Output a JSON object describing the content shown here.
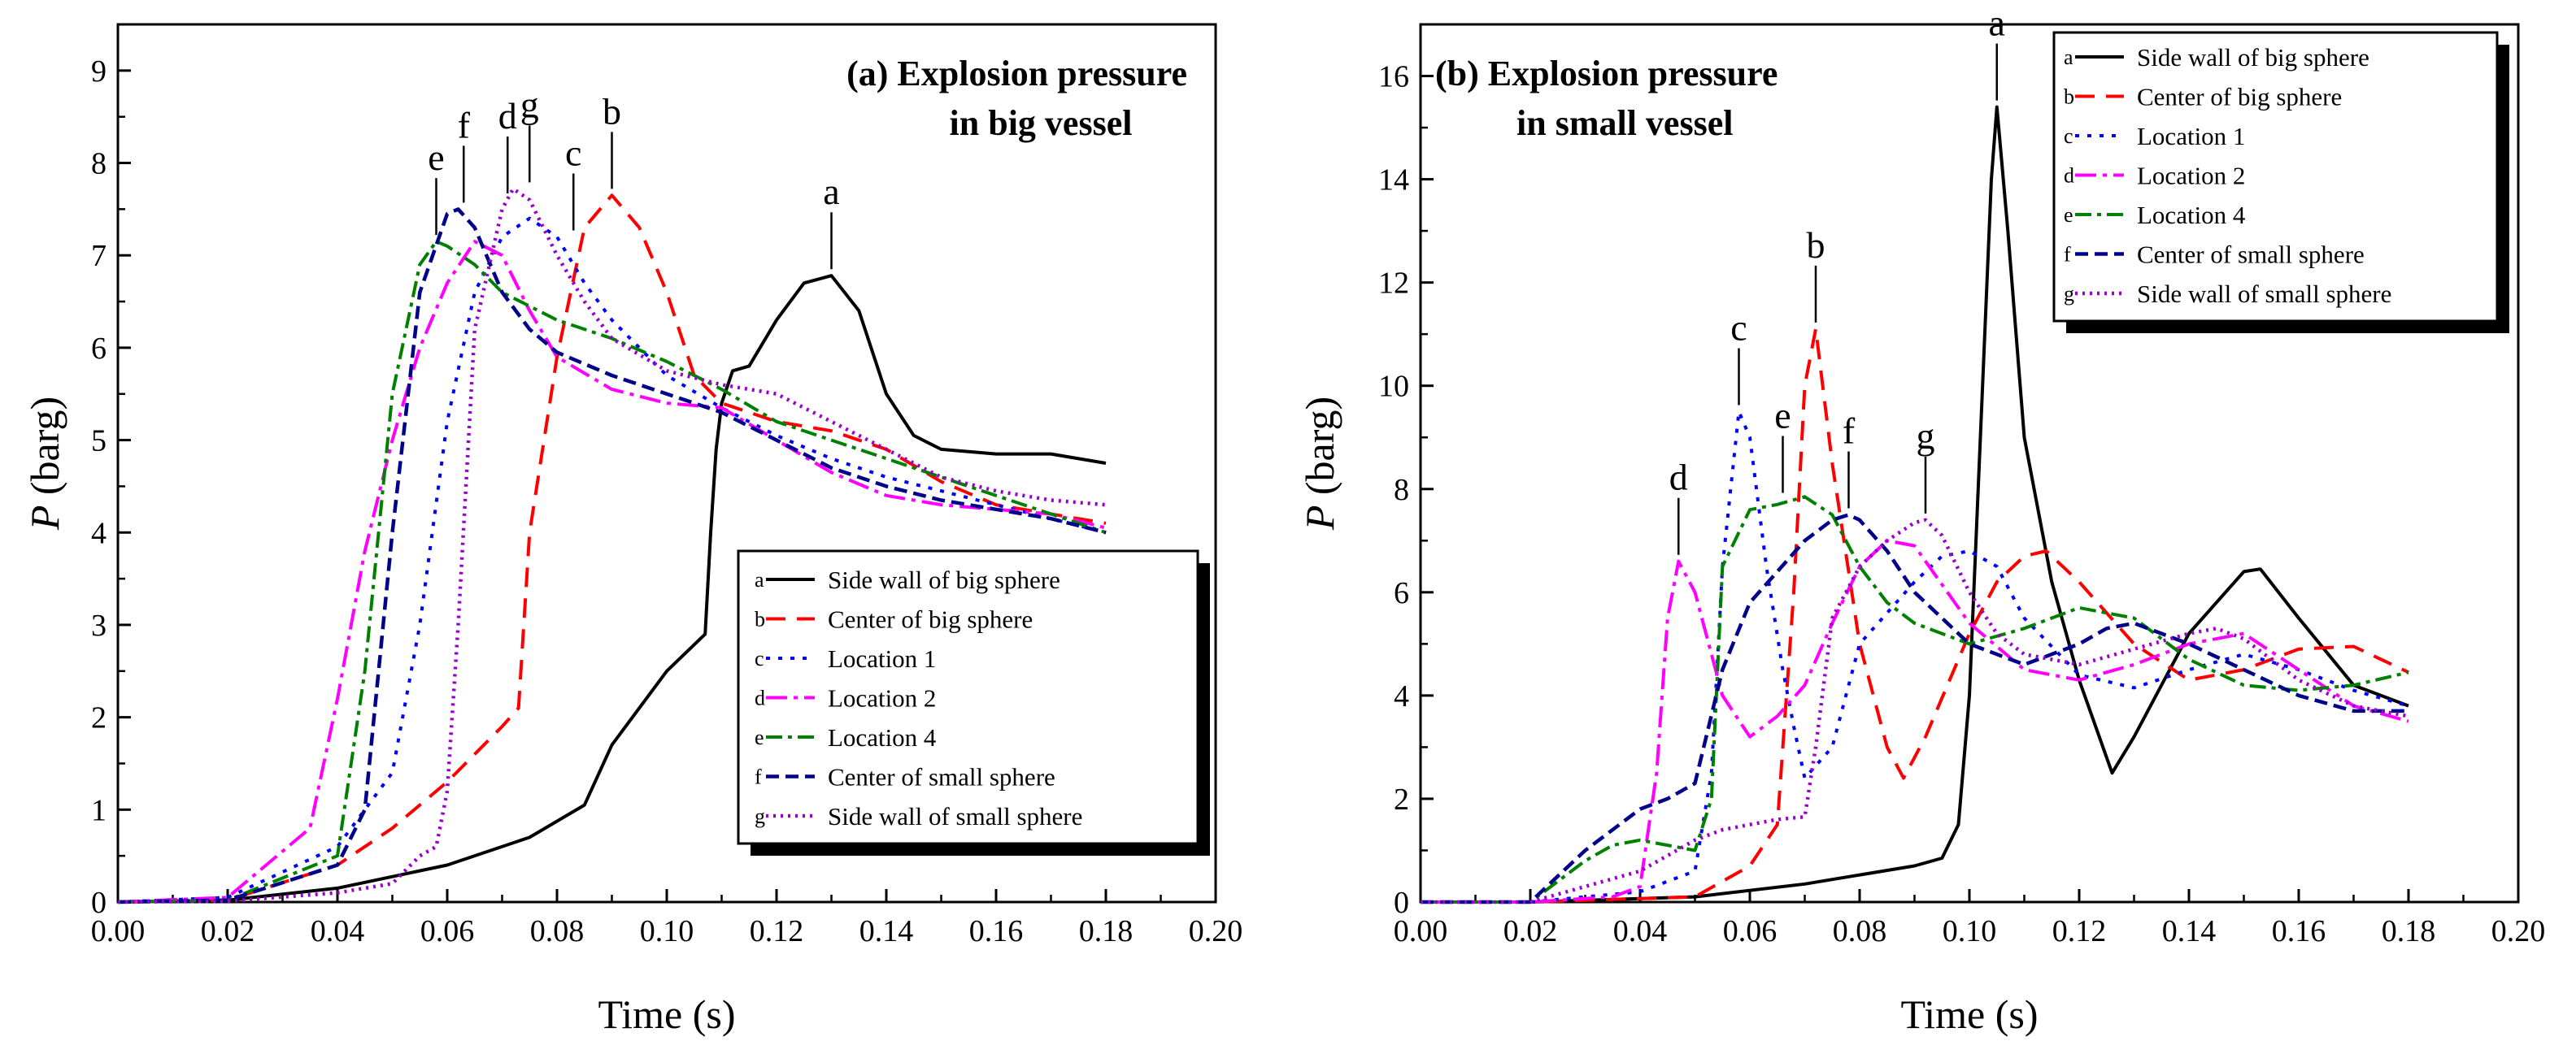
{
  "chart_data": [
    {
      "type": "line",
      "title": [
        "(a) Explosion pressure",
        "in big vessel"
      ],
      "xlabel": "Time (s)",
      "ylabel_italic": "P",
      "ylabel_rest": " (barg)",
      "xlim": [
        0,
        0.2
      ],
      "ylim": [
        0,
        9.5
      ],
      "x_ticks": [
        "0.00",
        "0.02",
        "0.04",
        "0.06",
        "0.08",
        "0.10",
        "0.12",
        "0.14",
        "0.16",
        "0.18",
        "0.20"
      ],
      "y_ticks": [
        "0",
        "1",
        "2",
        "3",
        "4",
        "5",
        "6",
        "7",
        "8",
        "9"
      ],
      "legend_position": "lower-right",
      "series": [
        {
          "key": "a",
          "name": "Side wall of big sphere",
          "color": "#000000",
          "dash": "",
          "width": 4,
          "x": [
            0,
            0.02,
            0.04,
            0.06,
            0.075,
            0.085,
            0.09,
            0.1,
            0.107,
            0.108,
            0.109,
            0.11,
            0.112,
            0.115,
            0.12,
            0.125,
            0.13,
            0.135,
            0.14,
            0.145,
            0.15,
            0.16,
            0.17,
            0.18
          ],
          "values": [
            0,
            0.02,
            0.15,
            0.4,
            0.7,
            1.05,
            1.7,
            2.5,
            2.9,
            4.0,
            4.9,
            5.4,
            5.75,
            5.8,
            6.3,
            6.7,
            6.78,
            6.4,
            5.5,
            5.05,
            4.9,
            4.85,
            4.85,
            4.75
          ]
        },
        {
          "key": "b",
          "name": "Center of big sphere",
          "color": "#ff0000",
          "dash": "24 14",
          "width": 4,
          "x": [
            0,
            0.02,
            0.04,
            0.05,
            0.06,
            0.07,
            0.073,
            0.075,
            0.08,
            0.085,
            0.09,
            0.095,
            0.1,
            0.105,
            0.11,
            0.12,
            0.13,
            0.14,
            0.15,
            0.16,
            0.17,
            0.18
          ],
          "values": [
            0,
            0.02,
            0.4,
            0.8,
            1.3,
            1.9,
            2.1,
            4.0,
            5.9,
            7.3,
            7.65,
            7.3,
            6.6,
            5.7,
            5.4,
            5.2,
            5.1,
            4.9,
            4.55,
            4.3,
            4.2,
            4.1
          ]
        },
        {
          "key": "c",
          "name": "Location 1",
          "color": "#0000ff",
          "dash": "5 10",
          "width": 4,
          "x": [
            0,
            0.02,
            0.04,
            0.05,
            0.055,
            0.06,
            0.065,
            0.07,
            0.075,
            0.08,
            0.085,
            0.09,
            0.1,
            0.11,
            0.12,
            0.13,
            0.14,
            0.15,
            0.16,
            0.17,
            0.18
          ],
          "values": [
            0,
            0.05,
            0.6,
            1.4,
            3.0,
            5.2,
            6.6,
            7.2,
            7.4,
            7.2,
            6.7,
            6.3,
            5.7,
            5.35,
            5.05,
            4.8,
            4.6,
            4.45,
            4.3,
            4.15,
            4.0
          ]
        },
        {
          "key": "d",
          "name": "Location 2",
          "color": "#ff00ff",
          "dash": "26 8 5 8",
          "width": 4,
          "x": [
            0,
            0.02,
            0.035,
            0.04,
            0.045,
            0.05,
            0.055,
            0.06,
            0.065,
            0.07,
            0.075,
            0.08,
            0.09,
            0.1,
            0.11,
            0.12,
            0.13,
            0.14,
            0.15,
            0.16,
            0.17,
            0.18
          ],
          "values": [
            0,
            0.05,
            0.8,
            2.2,
            3.8,
            5.0,
            6.0,
            6.7,
            7.15,
            7.0,
            6.4,
            5.9,
            5.55,
            5.4,
            5.35,
            5.0,
            4.65,
            4.4,
            4.3,
            4.25,
            4.2,
            4.05
          ]
        },
        {
          "key": "e",
          "name": "Location 4",
          "color": "#008000",
          "dash": "20 7 5 7",
          "width": 4,
          "x": [
            0,
            0.02,
            0.04,
            0.045,
            0.05,
            0.055,
            0.058,
            0.06,
            0.065,
            0.07,
            0.08,
            0.09,
            0.1,
            0.11,
            0.12,
            0.13,
            0.14,
            0.15,
            0.16,
            0.17,
            0.18
          ],
          "values": [
            0,
            0.02,
            0.5,
            2.5,
            5.5,
            6.9,
            7.15,
            7.1,
            6.9,
            6.6,
            6.3,
            6.1,
            5.85,
            5.55,
            5.2,
            5.0,
            4.8,
            4.6,
            4.4,
            4.2,
            4.0
          ]
        },
        {
          "key": "f",
          "name": "Center of small sphere",
          "color": "#00008b",
          "dash": "16 8",
          "width": 4.5,
          "x": [
            0,
            0.02,
            0.04,
            0.045,
            0.05,
            0.055,
            0.06,
            0.062,
            0.065,
            0.07,
            0.075,
            0.08,
            0.09,
            0.1,
            0.11,
            0.12,
            0.13,
            0.14,
            0.15,
            0.16,
            0.17,
            0.18
          ],
          "values": [
            0,
            0.02,
            0.4,
            1.0,
            4.0,
            6.6,
            7.45,
            7.5,
            7.3,
            6.6,
            6.2,
            5.95,
            5.7,
            5.5,
            5.3,
            5.0,
            4.7,
            4.5,
            4.35,
            4.25,
            4.15,
            4.0
          ]
        },
        {
          "key": "g",
          "name": "Side wall of small sphere",
          "color": "#9900cc",
          "dash": "3 6",
          "width": 4.5,
          "x": [
            0,
            0.02,
            0.04,
            0.05,
            0.055,
            0.058,
            0.06,
            0.062,
            0.065,
            0.07,
            0.072,
            0.075,
            0.08,
            0.085,
            0.09,
            0.1,
            0.11,
            0.12,
            0.13,
            0.14,
            0.15,
            0.16,
            0.17,
            0.18
          ],
          "values": [
            0,
            0.01,
            0.1,
            0.2,
            0.5,
            0.6,
            1.2,
            3.0,
            6.2,
            7.5,
            7.72,
            7.6,
            7.0,
            6.5,
            6.1,
            5.75,
            5.6,
            5.5,
            5.2,
            4.9,
            4.6,
            4.45,
            4.35,
            4.3
          ]
        }
      ],
      "peak_labels": [
        {
          "text": "a",
          "x": 0.13,
          "y": 6.78
        },
        {
          "text": "b",
          "x": 0.09,
          "y": 7.65
        },
        {
          "text": "c",
          "x": 0.083,
          "y": 7.2
        },
        {
          "text": "d",
          "x": 0.071,
          "y": 7.6
        },
        {
          "text": "e",
          "x": 0.058,
          "y": 7.15
        },
        {
          "text": "f",
          "x": 0.063,
          "y": 7.5
        },
        {
          "text": "g",
          "x": 0.075,
          "y": 7.72
        }
      ]
    },
    {
      "type": "line",
      "title": [
        "(b) Explosion pressure",
        "in small vessel"
      ],
      "xlabel": "Time (s)",
      "ylabel_italic": "P",
      "ylabel_rest": " (barg)",
      "xlim": [
        0,
        0.2
      ],
      "ylim": [
        0,
        17
      ],
      "x_ticks": [
        "0.00",
        "0.02",
        "0.04",
        "0.06",
        "0.08",
        "0.10",
        "0.12",
        "0.14",
        "0.16",
        "0.18",
        "0.20"
      ],
      "y_ticks": [
        "0",
        "2",
        "4",
        "6",
        "8",
        "10",
        "12",
        "14",
        "16"
      ],
      "legend_position": "upper-right",
      "series": [
        {
          "key": "a",
          "name": "Side wall of big sphere",
          "color": "#000000",
          "dash": "",
          "width": 4,
          "x": [
            0,
            0.02,
            0.05,
            0.07,
            0.09,
            0.095,
            0.098,
            0.1,
            0.102,
            0.104,
            0.105,
            0.107,
            0.11,
            0.115,
            0.12,
            0.126,
            0.13,
            0.14,
            0.15,
            0.153,
            0.16,
            0.17,
            0.18
          ],
          "values": [
            0,
            0,
            0.1,
            0.35,
            0.7,
            0.85,
            1.5,
            4.0,
            9.0,
            14.0,
            15.4,
            13.0,
            9.0,
            6.2,
            4.3,
            2.5,
            3.2,
            5.2,
            6.4,
            6.45,
            5.5,
            4.2,
            3.8
          ]
        },
        {
          "key": "b",
          "name": "Center of big sphere",
          "color": "#ff0000",
          "dash": "24 14",
          "width": 4,
          "x": [
            0,
            0.02,
            0.05,
            0.06,
            0.065,
            0.068,
            0.07,
            0.072,
            0.075,
            0.08,
            0.085,
            0.088,
            0.092,
            0.1,
            0.105,
            0.11,
            0.114,
            0.12,
            0.13,
            0.14,
            0.15,
            0.16,
            0.17,
            0.18
          ],
          "values": [
            0,
            0,
            0.1,
            0.7,
            1.5,
            6.0,
            10.0,
            11.1,
            8.5,
            5.0,
            3.0,
            2.4,
            3.2,
            5.2,
            6.2,
            6.7,
            6.8,
            6.2,
            5.0,
            4.3,
            4.5,
            4.9,
            4.95,
            4.45
          ]
        },
        {
          "key": "c",
          "name": "Location 1",
          "color": "#0000ff",
          "dash": "5 10",
          "width": 4,
          "x": [
            0,
            0.02,
            0.04,
            0.05,
            0.053,
            0.055,
            0.058,
            0.06,
            0.063,
            0.066,
            0.068,
            0.07,
            0.075,
            0.08,
            0.09,
            0.095,
            0.1,
            0.105,
            0.11,
            0.12,
            0.13,
            0.14,
            0.15,
            0.16,
            0.17,
            0.18
          ],
          "values": [
            0,
            0,
            0.2,
            0.6,
            2.5,
            6.5,
            9.5,
            9.0,
            6.5,
            4.5,
            3.4,
            2.4,
            3.0,
            5.0,
            6.2,
            6.7,
            6.8,
            6.5,
            5.5,
            4.4,
            4.15,
            4.5,
            4.8,
            4.5,
            4.1,
            3.8
          ]
        },
        {
          "key": "d",
          "name": "Location 2",
          "color": "#ff00ff",
          "dash": "26 8 5 8",
          "width": 4,
          "x": [
            0,
            0.02,
            0.035,
            0.04,
            0.043,
            0.045,
            0.047,
            0.05,
            0.055,
            0.06,
            0.065,
            0.07,
            0.075,
            0.08,
            0.085,
            0.09,
            0.1,
            0.11,
            0.12,
            0.13,
            0.14,
            0.15,
            0.16,
            0.17,
            0.18
          ],
          "values": [
            0,
            0,
            0.1,
            0.3,
            2.5,
            5.5,
            6.6,
            6.0,
            4.0,
            3.2,
            3.6,
            4.2,
            5.4,
            6.5,
            7.0,
            6.9,
            5.4,
            4.5,
            4.3,
            4.6,
            5.0,
            5.2,
            4.5,
            3.8,
            3.5
          ]
        },
        {
          "key": "e",
          "name": "Location 4",
          "color": "#008000",
          "dash": "20 7 5 7",
          "width": 4,
          "x": [
            0,
            0.02,
            0.03,
            0.035,
            0.04,
            0.045,
            0.05,
            0.053,
            0.055,
            0.06,
            0.065,
            0.07,
            0.075,
            0.08,
            0.085,
            0.09,
            0.1,
            0.11,
            0.12,
            0.13,
            0.14,
            0.15,
            0.16,
            0.17,
            0.18
          ],
          "values": [
            0,
            0,
            0.8,
            1.1,
            1.2,
            1.1,
            1.0,
            2.0,
            6.5,
            7.6,
            7.7,
            7.85,
            7.5,
            6.5,
            5.8,
            5.4,
            5.0,
            5.3,
            5.7,
            5.5,
            4.7,
            4.2,
            4.1,
            4.2,
            4.45
          ]
        },
        {
          "key": "f",
          "name": "Center of small sphere",
          "color": "#00008b",
          "dash": "16 8",
          "width": 4.5,
          "x": [
            0,
            0.02,
            0.03,
            0.04,
            0.045,
            0.05,
            0.055,
            0.06,
            0.065,
            0.07,
            0.075,
            0.078,
            0.08,
            0.085,
            0.09,
            0.1,
            0.11,
            0.12,
            0.125,
            0.13,
            0.14,
            0.15,
            0.16,
            0.17,
            0.18
          ],
          "values": [
            0,
            0,
            1.0,
            1.8,
            2.0,
            2.3,
            4.5,
            5.8,
            6.4,
            7.0,
            7.4,
            7.5,
            7.4,
            6.8,
            6.0,
            5.0,
            4.6,
            5.0,
            5.3,
            5.4,
            5.0,
            4.5,
            4.0,
            3.7,
            3.7
          ]
        },
        {
          "key": "g",
          "name": "Side wall of small sphere",
          "color": "#9900cc",
          "dash": "3 6",
          "width": 4.5,
          "x": [
            0,
            0.02,
            0.03,
            0.04,
            0.05,
            0.055,
            0.06,
            0.065,
            0.07,
            0.072,
            0.075,
            0.08,
            0.085,
            0.09,
            0.092,
            0.095,
            0.1,
            0.105,
            0.11,
            0.12,
            0.13,
            0.14,
            0.145,
            0.15,
            0.16,
            0.17,
            0.18
          ],
          "values": [
            0,
            0,
            0.3,
            0.6,
            1.2,
            1.4,
            1.5,
            1.6,
            1.65,
            3.0,
            5.5,
            6.5,
            7.0,
            7.35,
            7.4,
            7.1,
            6.0,
            5.2,
            4.8,
            4.6,
            4.9,
            5.2,
            5.3,
            5.1,
            4.3,
            3.8,
            3.6
          ]
        }
      ],
      "peak_labels": [
        {
          "text": "a",
          "x": 0.105,
          "y": 15.4
        },
        {
          "text": "b",
          "x": 0.072,
          "y": 11.1
        },
        {
          "text": "c",
          "x": 0.058,
          "y": 9.5
        },
        {
          "text": "d",
          "x": 0.047,
          "y": 6.6
        },
        {
          "text": "e",
          "x": 0.066,
          "y": 7.8
        },
        {
          "text": "f",
          "x": 0.078,
          "y": 7.5
        },
        {
          "text": "g",
          "x": 0.092,
          "y": 7.4
        }
      ]
    }
  ]
}
